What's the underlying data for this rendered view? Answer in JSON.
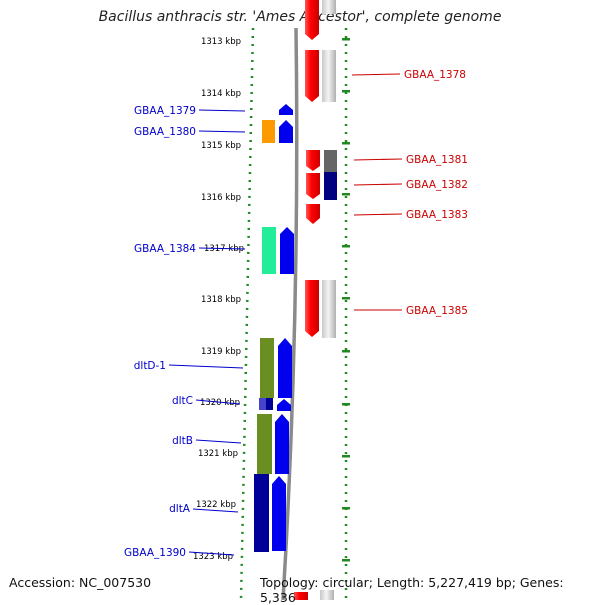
{
  "title": "Bacillus anthracis str. 'Ames Ancestor', complete genome",
  "accession_text": "Accession: NC_007530",
  "topology_text": "Topology: circular; Length: 5,227,419 bp; Genes: 5,336",
  "ticks": [
    "1313 kbp",
    "1314 kbp",
    "1315 kbp",
    "1316 kbp",
    "1317 kbp",
    "1318 kbp",
    "1319 kbp",
    "1320 kbp",
    "1321 kbp",
    "1322 kbp",
    "1323 kbp"
  ],
  "left_labels": [
    {
      "text": "GBAA_1379",
      "color": "#0000cc"
    },
    {
      "text": "GBAA_1380",
      "color": "#0000cc"
    },
    {
      "text": "GBAA_1384",
      "color": "#0000cc"
    },
    {
      "text": "dltD-1",
      "color": "#0000cc"
    },
    {
      "text": "dltC",
      "color": "#0000cc"
    },
    {
      "text": "dltB",
      "color": "#0000cc"
    },
    {
      "text": "dltA",
      "color": "#0000cc"
    },
    {
      "text": "GBAA_1390",
      "color": "#0000cc"
    }
  ],
  "right_labels": [
    {
      "text": "GBAA_1378",
      "color": "#cc0000"
    },
    {
      "text": "GBAA_1381",
      "color": "#cc0000"
    },
    {
      "text": "GBAA_1382",
      "color": "#cc0000"
    },
    {
      "text": "GBAA_1383",
      "color": "#cc0000"
    },
    {
      "text": "GBAA_1385",
      "color": "#cc0000"
    }
  ],
  "colors": {
    "forward_gene": "#0000ee",
    "reverse_gene": "#ee0000",
    "tick": "#228822",
    "backbone": "#888888"
  }
}
